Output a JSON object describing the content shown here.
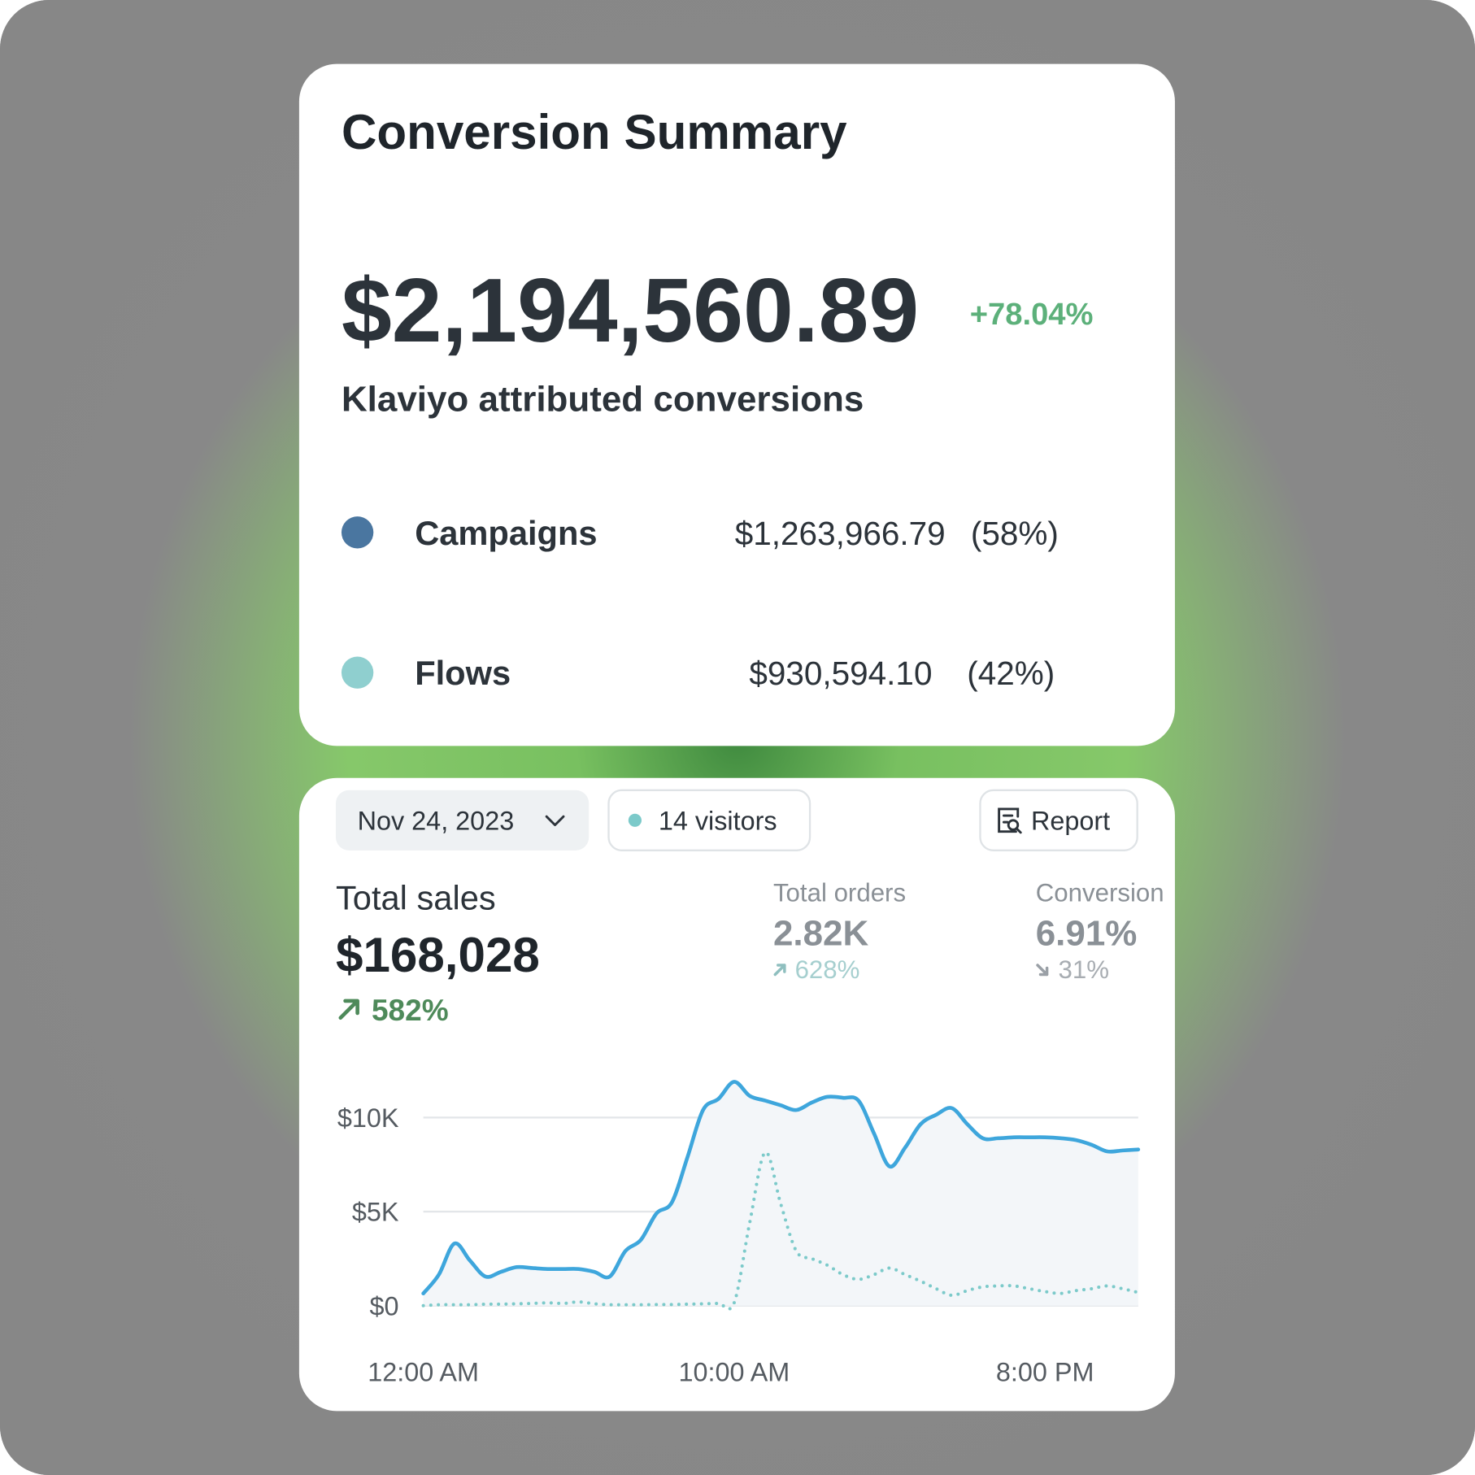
{
  "summary": {
    "title": "Conversion Summary",
    "total": "$2,194,560.89",
    "change": "+78.04%",
    "subtitle": "Klaviyo attributed conversions",
    "items": [
      {
        "name": "Campaigns",
        "color": "#4a76a0",
        "amount": "$1,263,966.79",
        "share": "(58%)"
      },
      {
        "name": "Flows",
        "color": "#8fcfcf",
        "amount": "$930,594.10",
        "share": "(42%)"
      }
    ]
  },
  "toolbar": {
    "date": "Nov 24, 2023",
    "visitors": "14 visitors",
    "report": "Report"
  },
  "metrics": [
    {
      "label": "Total sales",
      "value": "$168,028",
      "change": "582%"
    },
    {
      "label": "Total orders",
      "value": "2.82K",
      "change": "628%"
    },
    {
      "label": "Conversion",
      "value": "6.91%",
      "change": "31%"
    }
  ],
  "chart_data": {
    "type": "line",
    "x": [
      0,
      0.5,
      1,
      1.5,
      2,
      2.5,
      3,
      3.5,
      4,
      4.5,
      5,
      5.5,
      6,
      6.5,
      7,
      7.5,
      8,
      8.5,
      9,
      9.5,
      10,
      10.5,
      11,
      11.5,
      12,
      12.5,
      13,
      13.5,
      14,
      14.5,
      15,
      15.5,
      16,
      16.5,
      17,
      17.5,
      18,
      18.5,
      19,
      19.5,
      20,
      20.5,
      21,
      21.5,
      22,
      22.5,
      23
    ],
    "series": [
      {
        "color": "#3ea6dc",
        "style": "solid",
        "values": [
          650,
          1650,
          3300,
          2400,
          1550,
          1800,
          2050,
          2000,
          1950,
          1950,
          1950,
          1800,
          1550,
          2900,
          3500,
          4900,
          5500,
          7900,
          10400,
          11000,
          11900,
          11150,
          10900,
          10650,
          10400,
          10800,
          11100,
          11050,
          10900,
          9150,
          7400,
          8400,
          9650,
          10150,
          10500,
          9650,
          8900,
          8900,
          8950,
          8950,
          8950,
          8900,
          8800,
          8550,
          8200,
          8250,
          8300
        ]
      },
      {
        "color": "#7ccaca",
        "style": "dotted",
        "values": [
          0,
          50,
          50,
          50,
          80,
          80,
          100,
          120,
          150,
          120,
          200,
          100,
          50,
          50,
          50,
          60,
          60,
          80,
          100,
          120,
          150,
          4400,
          8150,
          5400,
          2900,
          2500,
          2150,
          1650,
          1400,
          1650,
          2000,
          1650,
          1300,
          900,
          550,
          800,
          1000,
          1050,
          1050,
          900,
          750,
          650,
          800,
          900,
          1050,
          900,
          700
        ]
      }
    ],
    "xlim": [
      0,
      23
    ],
    "xticks": [
      {
        "value": 0,
        "label": "12:00 AM"
      },
      {
        "value": 10,
        "label": "10:00 AM"
      },
      {
        "value": 20,
        "label": "8:00 PM"
      }
    ],
    "ylim": [
      0,
      13000
    ],
    "yticks": [
      {
        "value": 0,
        "label": "$0"
      },
      {
        "value": 5000,
        "label": "$5K"
      },
      {
        "value": 10000,
        "label": "$10K"
      }
    ],
    "grid": true,
    "area": true
  }
}
